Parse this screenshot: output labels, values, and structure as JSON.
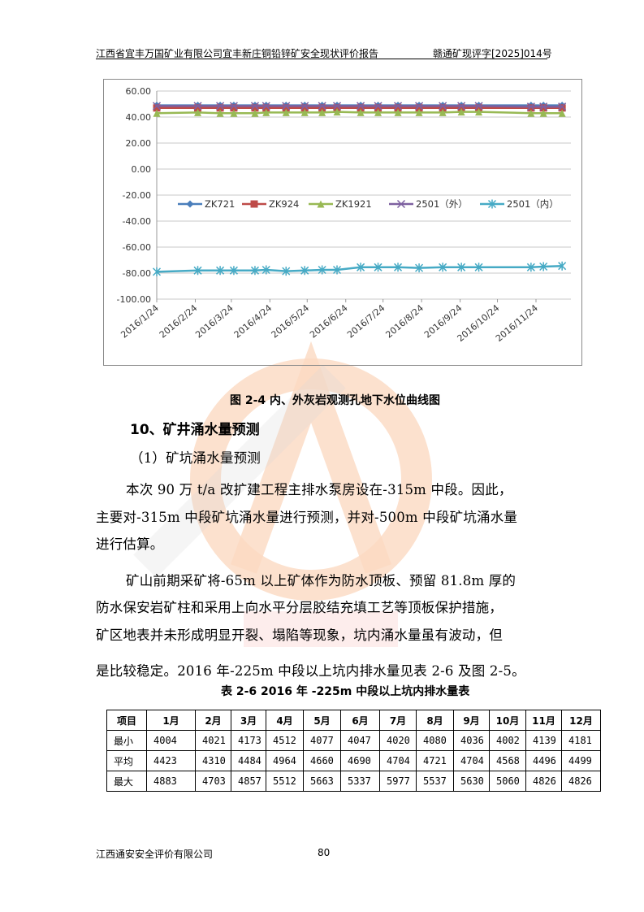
{
  "header": {
    "left": "江西省宜丰万国矿业有限公司宜丰新庄铜铅锌矿安全现状评价报告",
    "right": "赣通矿现评字[2025]014号"
  },
  "watermark": {
    "text": "江西通安",
    "diagonal_text": "江西通安安全评价"
  },
  "chart_data": {
    "type": "line",
    "title": "",
    "xlabel": "",
    "ylabel": "",
    "ylim": [
      -100,
      60
    ],
    "yticks": [
      "60.00",
      "40.00",
      "20.00",
      "0.00",
      "-20.00",
      "-40.00",
      "-60.00",
      "-80.00",
      "-100.00"
    ],
    "xticks": [
      "2016/1/24",
      "2016/2/24",
      "2016/3/24",
      "2016/4/24",
      "2016/5/24",
      "2016/6/24",
      "2016/7/24",
      "2016/8/24",
      "2016/9/24",
      "2016/10/24",
      "2016/11/24"
    ],
    "grid": true,
    "legend": "inside-center",
    "x": [
      "2016-01-24",
      "2016-02-26",
      "2016-03-15",
      "2016-03-26",
      "2016-04-12",
      "2016-04-21",
      "2016-05-07",
      "2016-05-22",
      "2016-06-05",
      "2016-06-17",
      "2016-07-06",
      "2016-07-20",
      "2016-08-05",
      "2016-08-22",
      "2016-09-10",
      "2016-09-25",
      "2016-10-09",
      "2016-11-20",
      "2016-11-30",
      "2016-12-15"
    ],
    "series": [
      {
        "name": "ZK721",
        "color": "#4a7ebb",
        "marker": "diamond",
        "values": [
          49,
          49,
          49,
          49,
          49,
          49,
          49,
          49,
          49,
          49,
          49,
          49,
          49,
          49,
          49,
          49,
          49,
          49,
          49,
          49
        ]
      },
      {
        "name": "ZK924",
        "color": "#be4b48",
        "marker": "square",
        "values": [
          47,
          47,
          47,
          47,
          47,
          47,
          47,
          47,
          47,
          47,
          47,
          47,
          47,
          47,
          47,
          47,
          47,
          47,
          47,
          47
        ]
      },
      {
        "name": "ZK1921",
        "color": "#98b954",
        "marker": "triangle",
        "values": [
          43,
          43.5,
          43,
          43,
          43,
          43.5,
          43.5,
          43.5,
          43.5,
          44,
          43.5,
          43.5,
          43.5,
          43.5,
          43.5,
          44,
          44,
          43,
          43,
          43
        ]
      },
      {
        "name": "2501（外）",
        "color": "#7d60a0",
        "marker": "x",
        "values": [
          48.5,
          48.5,
          48.5,
          48.5,
          48.5,
          48.5,
          48.5,
          48.5,
          48.5,
          48.5,
          48.5,
          48.5,
          48.5,
          48.5,
          48.5,
          48.5,
          48.5,
          48,
          48,
          48
        ]
      },
      {
        "name": "2501（内）",
        "color": "#46aac5",
        "marker": "asterisk",
        "values": [
          -79,
          -78,
          -78,
          -78,
          -78,
          -77.5,
          -78.5,
          -78,
          -77.5,
          -77.5,
          -75.5,
          -75.5,
          -75.5,
          -76,
          -75.5,
          -75.5,
          -75.5,
          -75.5,
          -75,
          -74.5
        ]
      }
    ]
  },
  "figure_caption": "图 2-4   内、外灰岩观测孔地下水位曲线图",
  "section_heading": "10、矿井涌水量预测",
  "paragraphs": [
    "（1）矿坑涌水量预测",
    "本次 90 万 t/a 改扩建工程主排水泵房设在-315m 中段。因此，",
    "主要对-315m 中段矿坑涌水量进行预测，并对-500m 中段矿坑涌水量",
    "进行估算。",
    "矿山前期采矿将-65m 以上矿体作为防水顶板、预留 81.8m 厚的",
    "防水保安岩矿柱和采用上向水平分层胶结充填工艺等顶板保护措施，",
    "矿区地表并未形成明显开裂、塌陷等现象，坑内涌水量虽有波动，但",
    "是比较稳定。2016 年-225m 中段以上坑内排水量见表 2-6 及图 2-5。"
  ],
  "table": {
    "caption": "表 2-6   2016 年 -225m 中段以上坑内排水量表",
    "headers": [
      "项目",
      "1月",
      "2月",
      "3月",
      "4月",
      "5月",
      "6月",
      "7月",
      "8月",
      "9月",
      "10月",
      "11月",
      "12月"
    ],
    "rows": [
      [
        "最小",
        "4004",
        "4021",
        "4173",
        "4512",
        "4077",
        "4047",
        "4020",
        "4080",
        "4036",
        "4002",
        "4139",
        "4181"
      ],
      [
        "平均",
        "4423",
        "4310",
        "4484",
        "4964",
        "4660",
        "4690",
        "4704",
        "4721",
        "4704",
        "4568",
        "4496",
        "4499"
      ],
      [
        "最大",
        "4883",
        "4703",
        "4857",
        "5512",
        "5663",
        "5337",
        "5977",
        "5537",
        "5630",
        "5060",
        "4826",
        "4826"
      ]
    ]
  },
  "footer": {
    "company": "江西通安安全评价有限公司",
    "page_number": "80"
  }
}
